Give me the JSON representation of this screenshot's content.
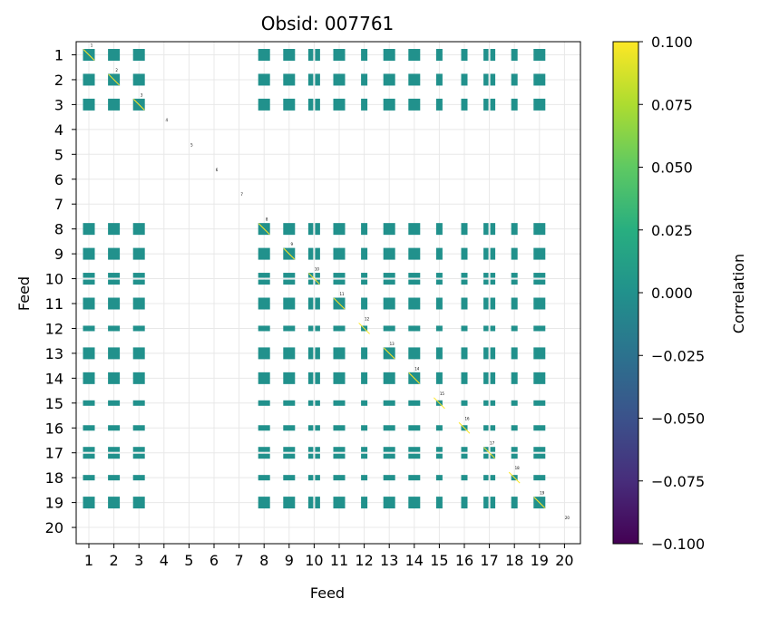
{
  "chart_data": {
    "type": "heatmap",
    "title": "Obsid: 007761",
    "xlabel": "Feed",
    "ylabel": "Feed",
    "x_ticks": [
      "1",
      "2",
      "3",
      "4",
      "5",
      "6",
      "7",
      "8",
      "9",
      "10",
      "11",
      "12",
      "13",
      "14",
      "15",
      "16",
      "17",
      "18",
      "19",
      "20"
    ],
    "y_ticks": [
      "1",
      "2",
      "3",
      "4",
      "5",
      "6",
      "7",
      "8",
      "9",
      "10",
      "11",
      "12",
      "13",
      "14",
      "15",
      "16",
      "17",
      "18",
      "19",
      "20"
    ],
    "grid": true,
    "feeds": [
      1,
      2,
      3,
      4,
      5,
      6,
      7,
      8,
      9,
      10,
      11,
      12,
      13,
      14,
      15,
      16,
      17,
      18,
      19,
      20
    ],
    "active_feeds": [
      1,
      2,
      3,
      8,
      9,
      10,
      11,
      12,
      13,
      14,
      15,
      16,
      17,
      18,
      19
    ],
    "block_style": {
      "1": "full",
      "2": "full",
      "3": "full",
      "8": "full",
      "9": "full",
      "10": "split",
      "11": "full",
      "12": "thin",
      "13": "full",
      "14": "full",
      "15": "thin",
      "16": "thin",
      "17": "split",
      "18": "thin",
      "19": "full"
    },
    "cell_value": 0.0,
    "diagonal_labels": [
      "1",
      "2",
      "3",
      "4",
      "5",
      "6",
      "7",
      "8",
      "9",
      "10",
      "11",
      "12",
      "13",
      "14",
      "15",
      "16",
      "17",
      "18",
      "19",
      "20"
    ],
    "colorbar": {
      "label": "Correlation",
      "min": -0.1,
      "max": 0.1,
      "ticks": [
        "0.100",
        "0.075",
        "0.050",
        "0.025",
        "0.000",
        "−0.025",
        "−0.050",
        "−0.075",
        "−0.100"
      ],
      "tick_values": [
        0.1,
        0.075,
        0.05,
        0.025,
        0.0,
        -0.025,
        -0.05,
        -0.075,
        -0.1
      ],
      "colormap": "viridis"
    },
    "colors": {
      "cell": "#21918c",
      "grid": "#e8e8e8",
      "diag_line": "#fde725"
    }
  }
}
